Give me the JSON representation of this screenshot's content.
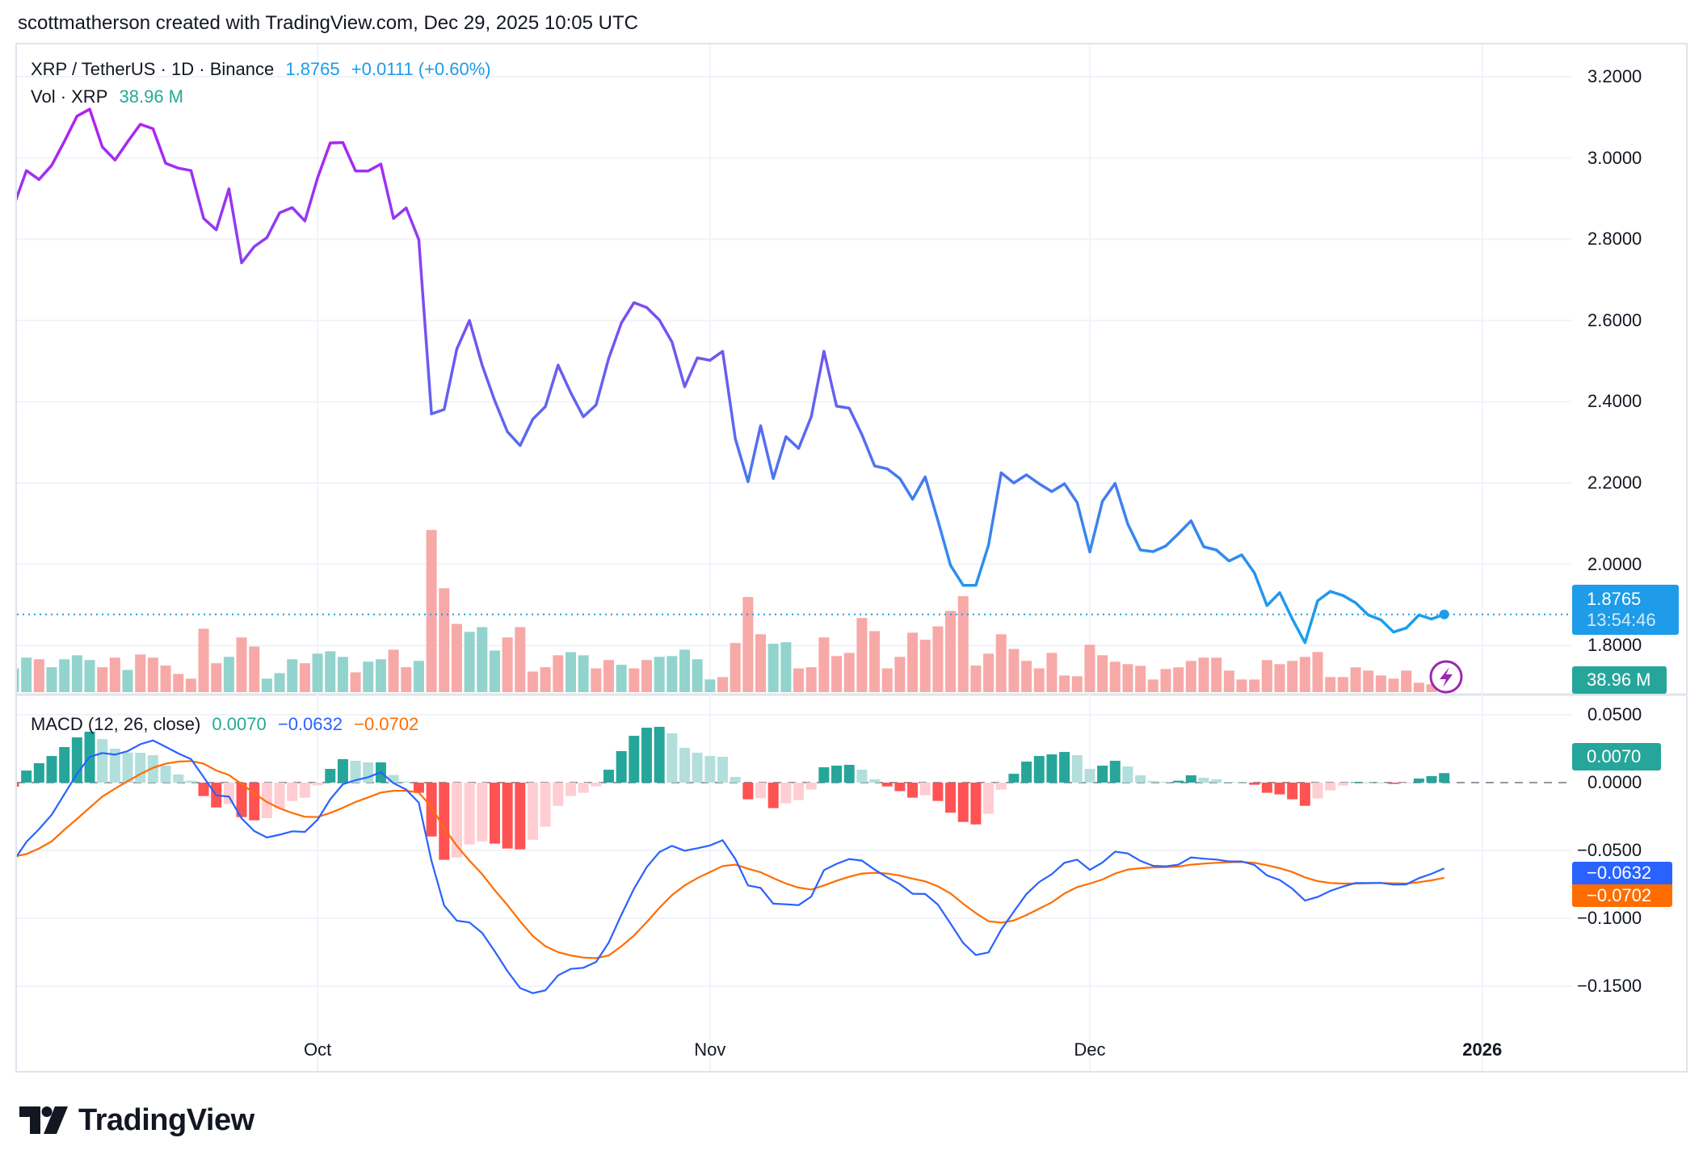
{
  "header": {
    "text": "scottmatherson created with TradingView.com, Dec 29, 2025 10:05 UTC"
  },
  "legend": {
    "symbol": "XRP / TetherUS · 1D · Binance",
    "last": "1.8765",
    "change": "+0.0111 (+0.60%)",
    "vol_label": "Vol · XRP",
    "vol_value": "38.96 M",
    "macd_label": "MACD (12, 26, close)",
    "macd_hist": "0.0070",
    "macd_line": "−0.0632",
    "macd_signal": "−0.0702"
  },
  "badges": {
    "price": "1.8765",
    "countdown": "13:54:46",
    "volume": "38.96 M",
    "hist": "0.0070",
    "macd": "−0.0632",
    "signal": "−0.0702"
  },
  "logo": {
    "text": "TradingView"
  },
  "colors": {
    "price_top": "#b31ff2",
    "price_mid": "#6b5cf2",
    "price_bottom": "#13a4ea",
    "last_price": "#1e9be9",
    "up": "#26a69a",
    "down": "#ef5350",
    "vol_up": "#92d3cd",
    "vol_down": "#f7a9a7",
    "hist_up_strong": "#26a69a",
    "hist_up_weak": "#b2dfdb",
    "hist_down_strong": "#ff5252",
    "hist_down_weak": "#ffcdd2",
    "macd": "#2962ff",
    "signal": "#ff6d00",
    "grid": "#f0f3fa",
    "border": "#e0e3eb",
    "alert_icon": "#9c27b0"
  },
  "chart_data": [
    {
      "type": "line",
      "title": "XRP / TetherUS · 1D · Binance",
      "series": [
        {
          "name": "XRP / TetherUS",
          "field": "close"
        }
      ],
      "ylim": [
        1.8,
        3.2
      ],
      "y_ticks": [
        "3.2000",
        "3.0000",
        "2.8000",
        "2.6000",
        "2.4000",
        "2.2000",
        "2.0000",
        "1.8000"
      ],
      "y_tick_values": [
        3.2,
        3.0,
        2.8,
        2.6,
        2.4,
        2.2,
        2.0,
        1.8
      ],
      "x_ticks": [
        {
          "label": "Oct",
          "date": "2025-10-01"
        },
        {
          "label": "Nov",
          "date": "2025-11-01"
        },
        {
          "label": "Dec",
          "date": "2025-12-01"
        },
        {
          "label": "2026",
          "date": "2026-01-01"
        }
      ],
      "grid": true,
      "dates": [
        "2025-09-07",
        "2025-09-08",
        "2025-09-09",
        "2025-09-10",
        "2025-09-11",
        "2025-09-12",
        "2025-09-13",
        "2025-09-14",
        "2025-09-15",
        "2025-09-16",
        "2025-09-17",
        "2025-09-18",
        "2025-09-19",
        "2025-09-20",
        "2025-09-21",
        "2025-09-22",
        "2025-09-23",
        "2025-09-24",
        "2025-09-25",
        "2025-09-26",
        "2025-09-27",
        "2025-09-28",
        "2025-09-29",
        "2025-09-30",
        "2025-10-01",
        "2025-10-02",
        "2025-10-03",
        "2025-10-04",
        "2025-10-05",
        "2025-10-06",
        "2025-10-07",
        "2025-10-08",
        "2025-10-09",
        "2025-10-10",
        "2025-10-11",
        "2025-10-12",
        "2025-10-13",
        "2025-10-14",
        "2025-10-15",
        "2025-10-16",
        "2025-10-17",
        "2025-10-18",
        "2025-10-19",
        "2025-10-20",
        "2025-10-21",
        "2025-10-22",
        "2025-10-23",
        "2025-10-24",
        "2025-10-25",
        "2025-10-26",
        "2025-10-27",
        "2025-10-28",
        "2025-10-29",
        "2025-10-30",
        "2025-10-31",
        "2025-11-01",
        "2025-11-02",
        "2025-11-03",
        "2025-11-04",
        "2025-11-05",
        "2025-11-06",
        "2025-11-07",
        "2025-11-08",
        "2025-11-09",
        "2025-11-10",
        "2025-11-11",
        "2025-11-12",
        "2025-11-13",
        "2025-11-14",
        "2025-11-15",
        "2025-11-16",
        "2025-11-17",
        "2025-11-18",
        "2025-11-19",
        "2025-11-20",
        "2025-11-21",
        "2025-11-22",
        "2025-11-23",
        "2025-11-24",
        "2025-11-25",
        "2025-11-26",
        "2025-11-27",
        "2025-11-28",
        "2025-11-29",
        "2025-11-30",
        "2025-12-01",
        "2025-12-02",
        "2025-12-03",
        "2025-12-04",
        "2025-12-05",
        "2025-12-06",
        "2025-12-07",
        "2025-12-08",
        "2025-12-09",
        "2025-12-10",
        "2025-12-11",
        "2025-12-12",
        "2025-12-13",
        "2025-12-14",
        "2025-12-15",
        "2025-12-16",
        "2025-12-17",
        "2025-12-18",
        "2025-12-19",
        "2025-12-20",
        "2025-12-21",
        "2025-12-22",
        "2025-12-23",
        "2025-12-24",
        "2025-12-25",
        "2025-12-26",
        "2025-12-27",
        "2025-12-28",
        "2025-12-29"
      ],
      "close": [
        2.882,
        2.969,
        2.947,
        2.982,
        3.041,
        3.103,
        3.12,
        3.027,
        2.995,
        3.04,
        3.083,
        3.072,
        2.987,
        2.975,
        2.969,
        2.851,
        2.823,
        2.924,
        2.742,
        2.782,
        2.804,
        2.865,
        2.878,
        2.845,
        2.951,
        3.037,
        3.038,
        2.968,
        2.968,
        2.985,
        2.851,
        2.877,
        2.799,
        2.37,
        2.381,
        2.53,
        2.6,
        2.49,
        2.402,
        2.326,
        2.292,
        2.357,
        2.388,
        2.49,
        2.422,
        2.363,
        2.392,
        2.507,
        2.594,
        2.644,
        2.632,
        2.601,
        2.547,
        2.437,
        2.508,
        2.502,
        2.524,
        2.309,
        2.203,
        2.341,
        2.211,
        2.314,
        2.285,
        2.363,
        2.524,
        2.389,
        2.384,
        2.319,
        2.242,
        2.235,
        2.211,
        2.16,
        2.215,
        2.108,
        1.997,
        1.948,
        1.948,
        2.047,
        2.225,
        2.2,
        2.22,
        2.198,
        2.179,
        2.198,
        2.152,
        2.03,
        2.155,
        2.199,
        2.099,
        2.035,
        2.031,
        2.045,
        2.075,
        2.107,
        2.043,
        2.035,
        2.008,
        2.023,
        1.979,
        1.898,
        1.93,
        1.865,
        1.807,
        1.91,
        1.933,
        1.923,
        1.905,
        1.875,
        1.863,
        1.833,
        1.843,
        1.875,
        1.865,
        1.8765
      ],
      "last_value": 1.8765
    },
    {
      "type": "bar",
      "title": "Vol · XRP",
      "unit": "M",
      "values": [
        648,
        940,
        896,
        680,
        896,
        1004,
        875,
        680,
        940,
        605,
        1026,
        940,
        724,
        497,
        367,
        1728,
        788,
        961,
        1490,
        1242,
        367,
        518,
        896,
        788,
        1048,
        1112,
        961,
        540,
        832,
        896,
        1156,
        680,
        853,
        4417,
        2830,
        1858,
        1642,
        1771,
        1134,
        1490,
        1771,
        562,
        680,
        1004,
        1091,
        1004,
        648,
        875,
        745,
        648,
        875,
        961,
        983,
        1156,
        896,
        346,
        410,
        1339,
        2592,
        1577,
        1318,
        1361,
        648,
        680,
        1490,
        983,
        1069,
        2020,
        1663,
        648,
        961,
        1620,
        1426,
        1793,
        2214,
        2614,
        724,
        1048,
        1577,
        1177,
        853,
        648,
        1069,
        454,
        432,
        1291,
        1005,
        829,
        763,
        719,
        345,
        631,
        675,
        851,
        939,
        939,
        587,
        345,
        345,
        873,
        763,
        851,
        961,
        1093,
        411,
        411,
        675,
        587,
        455,
        367,
        587,
        257,
        213,
        38.96
      ],
      "direction": "uuduuuuddudddddddudduuuduuuduudduddduuuddddduuddudduuuuudddduu"
    },
    {
      "type": "bar+line",
      "title": "MACD (12, 26, close)",
      "ylim": [
        -0.16,
        0.06
      ],
      "y_ticks": [
        "0.0500",
        "0.0000",
        "−0.0500",
        "−0.1000",
        "−0.1500"
      ],
      "y_tick_values": [
        0.05,
        0,
        -0.05,
        -0.1,
        -0.15
      ],
      "histogram": [
        -0.003,
        0.0089,
        0.0143,
        0.0196,
        0.0262,
        0.0333,
        0.0375,
        0.0321,
        0.025,
        0.0222,
        0.022,
        0.0202,
        0.0125,
        0.006,
        0.0014,
        -0.0099,
        -0.0183,
        -0.0159,
        -0.0254,
        -0.0278,
        -0.0262,
        -0.0194,
        -0.0135,
        -0.0111,
        -0.002,
        0.0101,
        0.0173,
        0.0161,
        0.0149,
        0.0149,
        0.0056,
        0.0008,
        -0.0075,
        -0.0397,
        -0.0569,
        -0.0552,
        -0.0456,
        -0.0433,
        -0.045,
        -0.0486,
        -0.0492,
        -0.0421,
        -0.0325,
        -0.0171,
        -0.0099,
        -0.0075,
        -0.0028,
        0.0095,
        0.0232,
        0.0345,
        0.0405,
        0.0411,
        0.0363,
        0.0256,
        0.022,
        0.0196,
        0.019,
        0.0042,
        -0.0123,
        -0.0115,
        -0.0188,
        -0.0153,
        -0.0129,
        -0.0052,
        0.0113,
        0.0125,
        0.0131,
        0.0095,
        0.0024,
        -0.0028,
        -0.0063,
        -0.0111,
        -0.0093,
        -0.0135,
        -0.0222,
        -0.029,
        -0.0308,
        -0.023,
        -0.0052,
        0.0065,
        0.0155,
        0.0196,
        0.0208,
        0.0226,
        0.0202,
        0.0101,
        0.0125,
        0.0161,
        0.0119,
        0.0054,
        0.0012,
        0.0006,
        0.0014,
        0.0054,
        0.0036,
        0.0024,
        0.0006,
        0.0004,
        -0.0016,
        -0.0075,
        -0.0087,
        -0.0123,
        -0.0171,
        -0.0117,
        -0.0058,
        -0.0022,
        0.0004,
        0.0002,
        0.0001,
        -0.001,
        -0.0006,
        0.003,
        0.0048,
        0.007
      ],
      "signal": [
        -0.0546,
        -0.0526,
        -0.0486,
        -0.0433,
        -0.0347,
        -0.0268,
        -0.0185,
        -0.0103,
        -0.0044,
        0.001,
        0.0063,
        0.0109,
        0.0139,
        0.0155,
        0.0159,
        0.0139,
        0.0089,
        0.0056,
        -0.001,
        -0.0079,
        -0.0143,
        -0.019,
        -0.0224,
        -0.0252,
        -0.0254,
        -0.0224,
        -0.0185,
        -0.0143,
        -0.0109,
        -0.0073,
        -0.006,
        -0.006,
        -0.0073,
        -0.0179,
        -0.0337,
        -0.0466,
        -0.0575,
        -0.0675,
        -0.0794,
        -0.0903,
        -0.1022,
        -0.1131,
        -0.1206,
        -0.125,
        -0.1274,
        -0.129,
        -0.1294,
        -0.1274,
        -0.1206,
        -0.1127,
        -0.1028,
        -0.0923,
        -0.0829,
        -0.0758,
        -0.0704,
        -0.0659,
        -0.0615,
        -0.0605,
        -0.0635,
        -0.0661,
        -0.0704,
        -0.0744,
        -0.0774,
        -0.0788,
        -0.0758,
        -0.0724,
        -0.0694,
        -0.067,
        -0.0665,
        -0.067,
        -0.0685,
        -0.0708,
        -0.0728,
        -0.0764,
        -0.0817,
        -0.0893,
        -0.0962,
        -0.1022,
        -0.1032,
        -0.1016,
        -0.0976,
        -0.0929,
        -0.0883,
        -0.0817,
        -0.077,
        -0.0744,
        -0.0714,
        -0.067,
        -0.0641,
        -0.0631,
        -0.0625,
        -0.0623,
        -0.0619,
        -0.0605,
        -0.0597,
        -0.0591,
        -0.0587,
        -0.0585,
        -0.0591,
        -0.0609,
        -0.0631,
        -0.0659,
        -0.0698,
        -0.0726,
        -0.074,
        -0.0744,
        -0.0744,
        -0.0742,
        -0.074,
        -0.0742,
        -0.0744,
        -0.0734,
        -0.072,
        -0.0702
      ],
      "macd_last": -0.0632
    }
  ]
}
